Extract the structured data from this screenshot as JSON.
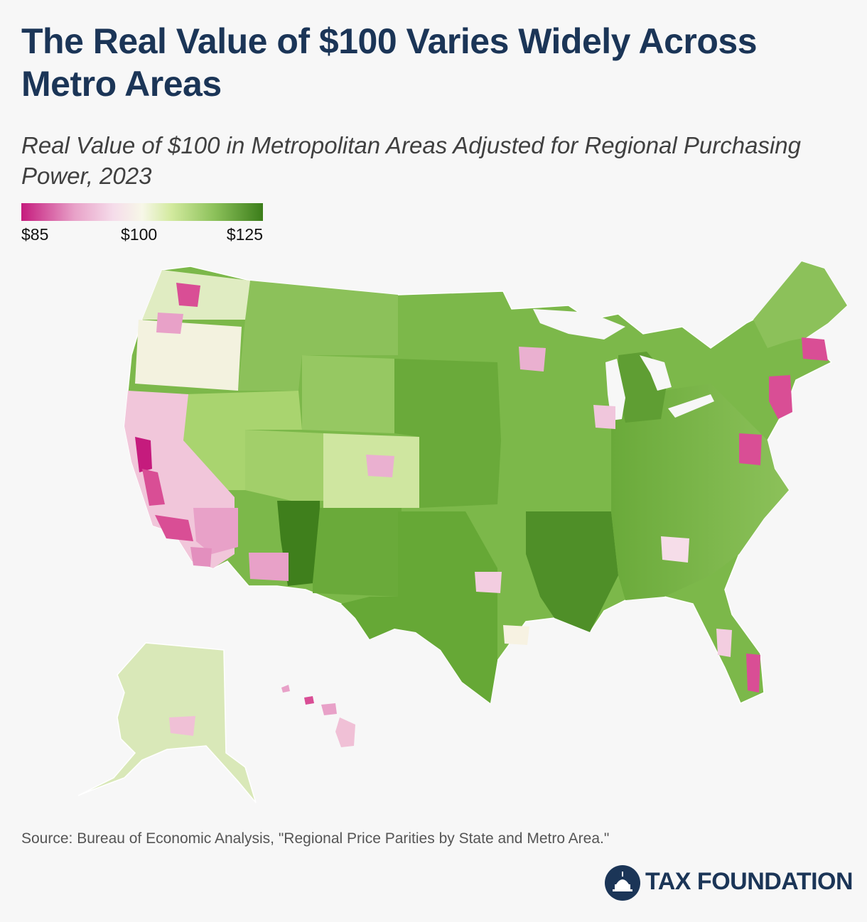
{
  "title": "The Real Value of $100 Varies Widely Across Metro Areas",
  "subtitle": "Real Value of $100 in Metropolitan Areas Adjusted for Regional Purchasing Power, 2023",
  "legend": {
    "min_label": "$85",
    "mid_label": "$100",
    "max_label": "$125",
    "min_value": 85,
    "mid_value": 100,
    "max_value": 125
  },
  "colors": {
    "low": "#c51b7d",
    "pink": "#e8a1c8",
    "light_pink": "#f3cde0",
    "neutral": "#f7f7e8",
    "light_green": "#d3ea9f",
    "mid_green": "#8cc15a",
    "green": "#6aaa3a",
    "dark_green": "#3b7d1a",
    "title": "#1b3557"
  },
  "source": "Source: Bureau of Economic Analysis, \"Regional Price Parities by State and Metro Area.\"",
  "brand": {
    "name": "TAX FOUNDATION",
    "logo_icon": "capitol-dome-icon"
  }
}
